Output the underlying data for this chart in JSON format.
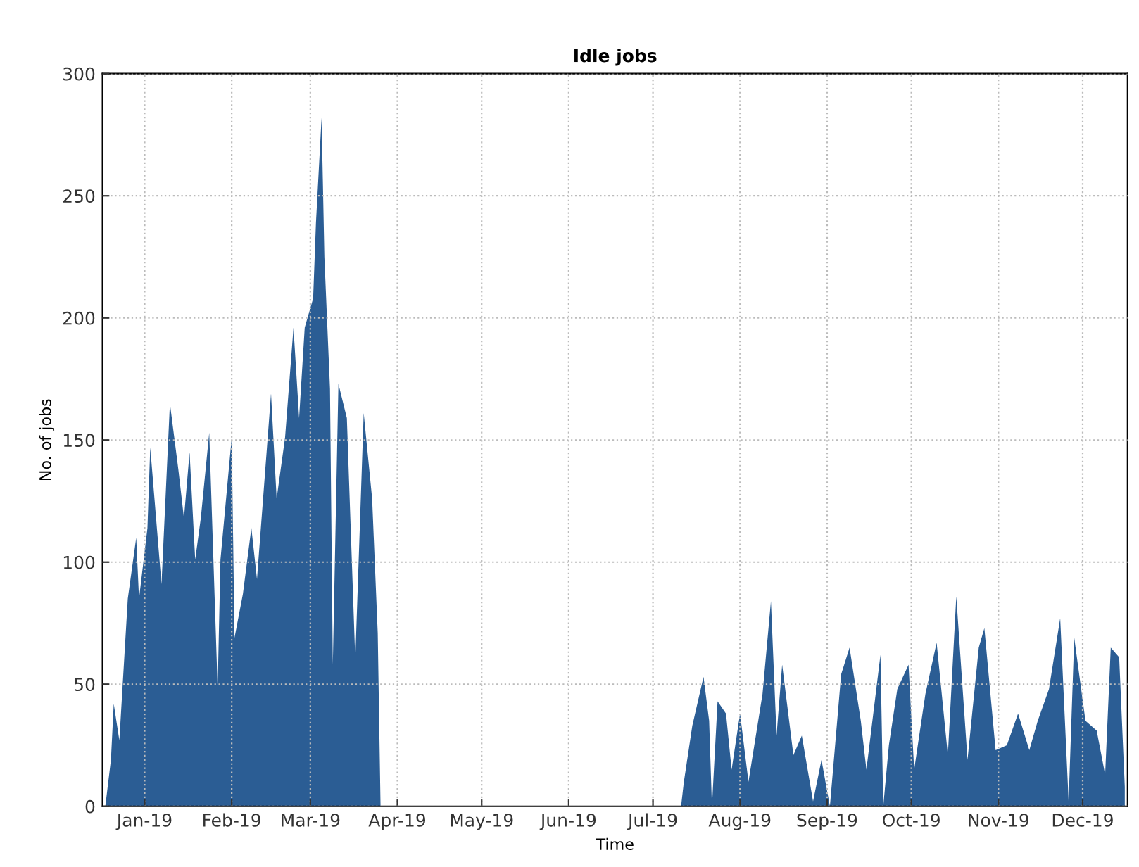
{
  "chart_data": {
    "type": "area",
    "title": "Idle jobs",
    "xlabel": "Time",
    "ylabel": "No. of jobs",
    "xlim": [
      "2018-12-17",
      "2019-12-17"
    ],
    "ylim": [
      0,
      300
    ],
    "yticks": [
      0,
      50,
      100,
      150,
      200,
      250,
      300
    ],
    "xticks": [
      {
        "value": "2019-01-01",
        "label": "Jan-19"
      },
      {
        "value": "2019-02-01",
        "label": "Feb-19"
      },
      {
        "value": "2019-03-01",
        "label": "Mar-19"
      },
      {
        "value": "2019-04-01",
        "label": "Apr-19"
      },
      {
        "value": "2019-05-01",
        "label": "May-19"
      },
      {
        "value": "2019-06-01",
        "label": "Jun-19"
      },
      {
        "value": "2019-07-01",
        "label": "Jul-19"
      },
      {
        "value": "2019-08-01",
        "label": "Aug-19"
      },
      {
        "value": "2019-09-01",
        "label": "Sep-19"
      },
      {
        "value": "2019-10-01",
        "label": "Oct-19"
      },
      {
        "value": "2019-11-01",
        "label": "Nov-19"
      },
      {
        "value": "2019-12-01",
        "label": "Dec-19"
      }
    ],
    "grid": true,
    "x": [
      "2018-12-18",
      "2018-12-20",
      "2018-12-21",
      "2018-12-23",
      "2018-12-26",
      "2018-12-29",
      "2018-12-30",
      "2019-01-02",
      "2019-01-03",
      "2019-01-07",
      "2019-01-10",
      "2019-01-13",
      "2019-01-15",
      "2019-01-17",
      "2019-01-19",
      "2019-01-21",
      "2019-01-24",
      "2019-01-27",
      "2019-01-28",
      "2019-02-01",
      "2019-02-02",
      "2019-02-05",
      "2019-02-08",
      "2019-02-10",
      "2019-02-15",
      "2019-02-17",
      "2019-02-20",
      "2019-02-23",
      "2019-02-25",
      "2019-02-27",
      "2019-03-02",
      "2019-03-03",
      "2019-03-05",
      "2019-03-06",
      "2019-03-08",
      "2019-03-09",
      "2019-03-11",
      "2019-03-14",
      "2019-03-17",
      "2019-03-20",
      "2019-03-23",
      "2019-03-25",
      "2019-03-26",
      "2019-07-11",
      "2019-07-12",
      "2019-07-15",
      "2019-07-19",
      "2019-07-21",
      "2019-07-22",
      "2019-07-24",
      "2019-07-27",
      "2019-07-29",
      "2019-08-01",
      "2019-08-04",
      "2019-08-09",
      "2019-08-12",
      "2019-08-14",
      "2019-08-16",
      "2019-08-20",
      "2019-08-23",
      "2019-08-27",
      "2019-08-30",
      "2019-09-02",
      "2019-09-06",
      "2019-09-09",
      "2019-09-13",
      "2019-09-15",
      "2019-09-20",
      "2019-09-21",
      "2019-09-23",
      "2019-09-26",
      "2019-09-30",
      "2019-10-02",
      "2019-10-06",
      "2019-10-10",
      "2019-10-14",
      "2019-10-17",
      "2019-10-21",
      "2019-10-25",
      "2019-10-27",
      "2019-10-31",
      "2019-11-04",
      "2019-11-08",
      "2019-11-12",
      "2019-11-15",
      "2019-11-19",
      "2019-11-23",
      "2019-11-26",
      "2019-11-28",
      "2019-12-02",
      "2019-12-06",
      "2019-12-09",
      "2019-12-11",
      "2019-12-14",
      "2019-12-16"
    ],
    "series": [
      {
        "color": "#2b5d94",
        "values": [
          0,
          19,
          42,
          27,
          85,
          110,
          85,
          114,
          147,
          91,
          165,
          138,
          118,
          145,
          101,
          118,
          153,
          48,
          101,
          151,
          69,
          87,
          114,
          93,
          169,
          126,
          151,
          196,
          159,
          196,
          208,
          239,
          282,
          225,
          171,
          58,
          173,
          159,
          60,
          161,
          126,
          71,
          0,
          0,
          10,
          33,
          53,
          35,
          0,
          43,
          38,
          15,
          38,
          10,
          46,
          84,
          29,
          58,
          21,
          29,
          2,
          19,
          0,
          54,
          65,
          35,
          15,
          62,
          0,
          25,
          48,
          58,
          15,
          46,
          67,
          21,
          86,
          19,
          65,
          73,
          23,
          25,
          38,
          23,
          35,
          48,
          77,
          2,
          69,
          35,
          31,
          13,
          65,
          61,
          8
        ]
      }
    ]
  }
}
